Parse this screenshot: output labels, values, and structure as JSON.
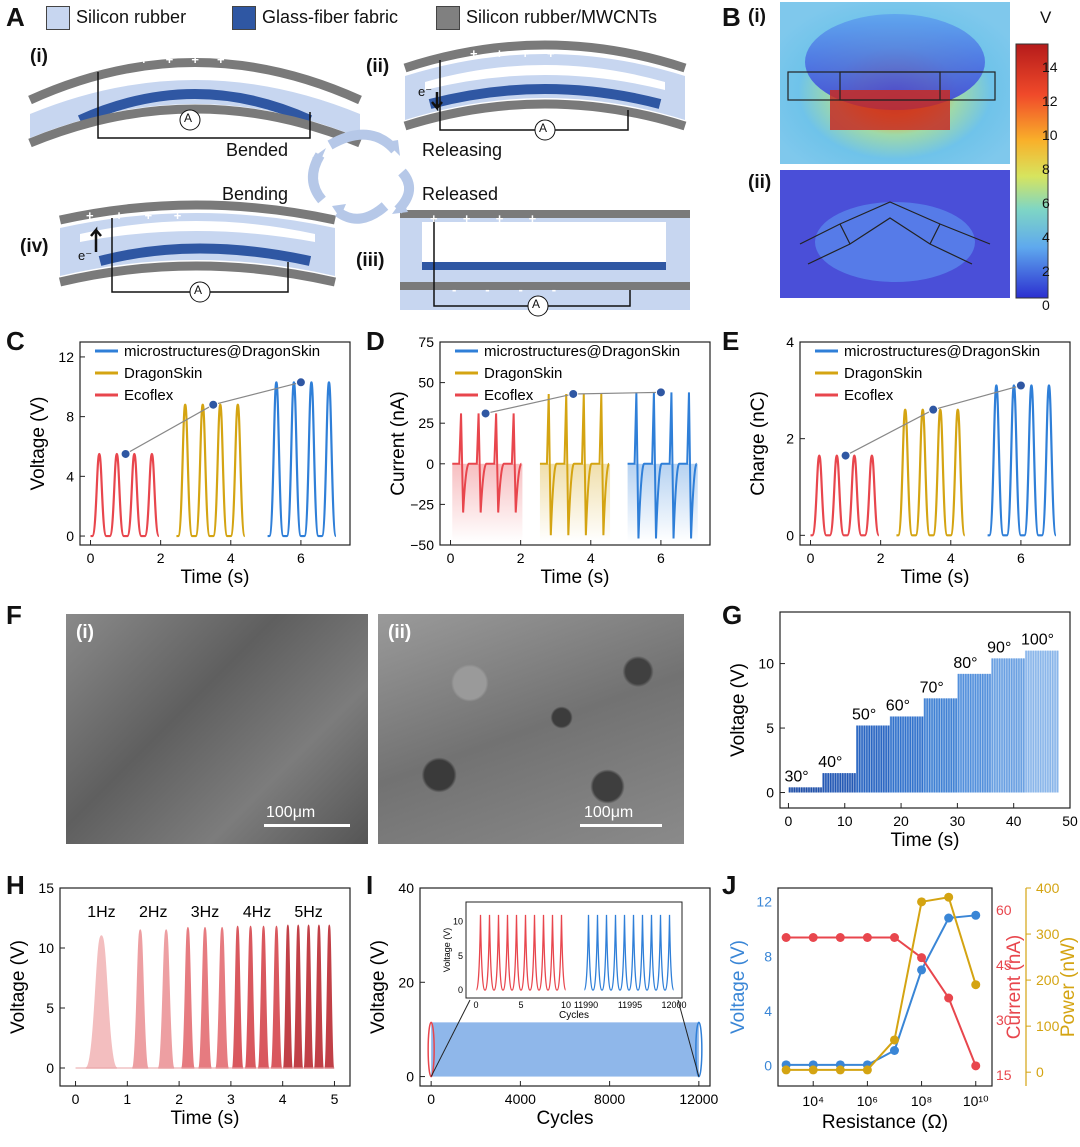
{
  "panels": {
    "A": {
      "label": "A",
      "legend": [
        {
          "label": "Silicon rubber",
          "color": "#c7d6f0"
        },
        {
          "label": "Glass-fiber fabric",
          "color": "#2f57a3"
        },
        {
          "label": "Silicon rubber/MWCNTs",
          "color": "#808080"
        }
      ],
      "subs": {
        "i": "(i)",
        "ii": "(ii)",
        "iii": "(iii)",
        "iv": "(iv)"
      },
      "states": {
        "bended": "Bended",
        "releasing": "Releasing",
        "released": "Released",
        "bending": "Bending"
      },
      "ammeter": "A",
      "electron": "e⁻",
      "plus": "+",
      "minus": "-"
    },
    "B": {
      "label": "B",
      "sub_i": "(i)",
      "sub_ii": "(ii)",
      "unit": "V",
      "colorbar_ticks": [
        "14",
        "12",
        "10",
        "8",
        "6",
        "4",
        "2",
        "0"
      ]
    },
    "F": {
      "label": "F",
      "sub_i": "(i)",
      "sub_ii": "(ii)",
      "scalebar_i": "100μm",
      "scalebar_ii": "100μm"
    },
    "C": {
      "label": "C"
    },
    "D": {
      "label": "D"
    },
    "E": {
      "label": "E"
    },
    "G": {
      "label": "G"
    },
    "H": {
      "label": "H"
    },
    "I": {
      "label": "I"
    },
    "J": {
      "label": "J"
    }
  },
  "colors": {
    "red": "#e8464d",
    "gold": "#d4a412",
    "blue": "#2f7fd8",
    "lightblue": "#8fb7ea",
    "jcur": "#e8464d",
    "jpow": "#d4a412",
    "jvol": "#3a86d6"
  },
  "chart_data": [
    {
      "id": "C",
      "type": "line",
      "xlabel": "Time (s)",
      "ylabel": "Voltage (V)",
      "xlim": [
        -0.3,
        7.4
      ],
      "ylim": [
        -0.6,
        13
      ],
      "xticks": [
        "0",
        "2",
        "4",
        "6"
      ],
      "yticks": [
        "0",
        "4",
        "8",
        "12"
      ],
      "legend": [
        "microstructures@DragonSkin",
        "DragonSkin",
        "Ecoflex"
      ],
      "series": [
        {
          "name": "Ecoflex",
          "peaks": [
            0.25,
            0.75,
            1.25,
            1.75
          ],
          "peak_value": 5.5,
          "baseline": 0.0
        },
        {
          "name": "DragonSkin",
          "peaks": [
            2.7,
            3.2,
            3.7,
            4.2
          ],
          "peak_value": 8.8,
          "baseline": 0.0
        },
        {
          "name": "microstructures@DragonSkin",
          "peaks": [
            5.3,
            5.8,
            6.3,
            6.8
          ],
          "peak_value": 10.3,
          "baseline": 0.0
        }
      ],
      "trend": [
        [
          1.0,
          5.5
        ],
        [
          3.5,
          8.8
        ],
        [
          6.0,
          10.3
        ]
      ]
    },
    {
      "id": "D",
      "type": "line",
      "xlabel": "Time (s)",
      "ylabel": "Current (nA)",
      "xlim": [
        -0.3,
        7.4
      ],
      "ylim": [
        -50,
        75
      ],
      "xticks": [
        "0",
        "2",
        "4",
        "6"
      ],
      "yticks": [
        "−50",
        "−25",
        "0",
        "25",
        "50",
        "75"
      ],
      "legend": [
        "microstructures@DragonSkin",
        "DragonSkin",
        "Ecoflex"
      ],
      "series": [
        {
          "name": "Ecoflex",
          "peaks": [
            0.3,
            0.8,
            1.3,
            1.8
          ],
          "peak_value": 31,
          "trough_value": -30
        },
        {
          "name": "DragonSkin",
          "peaks": [
            2.8,
            3.3,
            3.8,
            4.3
          ],
          "peak_value": 43,
          "trough_value": -44
        },
        {
          "name": "microstructures@DragonSkin",
          "peaks": [
            5.3,
            5.8,
            6.3,
            6.8
          ],
          "peak_value": 44,
          "trough_value": -46
        }
      ],
      "trend": [
        [
          1.0,
          31
        ],
        [
          3.5,
          43
        ],
        [
          6.0,
          44
        ]
      ]
    },
    {
      "id": "E",
      "type": "line",
      "xlabel": "Time (s)",
      "ylabel": "Charge (nC)",
      "xlim": [
        -0.3,
        7.4
      ],
      "ylim": [
        -0.2,
        4
      ],
      "xticks": [
        "0",
        "2",
        "4",
        "6"
      ],
      "yticks": [
        "0",
        "2",
        "4"
      ],
      "legend": [
        "microstructures@DragonSkin",
        "DragonSkin",
        "Ecoflex"
      ],
      "series": [
        {
          "name": "Ecoflex",
          "peaks": [
            0.25,
            0.75,
            1.25,
            1.75
          ],
          "peak_value": 1.65,
          "baseline": 0.0
        },
        {
          "name": "DragonSkin",
          "peaks": [
            2.7,
            3.2,
            3.7,
            4.2
          ],
          "peak_value": 2.6,
          "baseline": 0.0
        },
        {
          "name": "microstructures@DragonSkin",
          "peaks": [
            5.3,
            5.8,
            6.3,
            6.8
          ],
          "peak_value": 3.1,
          "baseline": 0.0
        }
      ],
      "trend": [
        [
          1.0,
          1.65
        ],
        [
          3.5,
          2.6
        ],
        [
          6.0,
          3.1
        ]
      ]
    },
    {
      "id": "G",
      "type": "line",
      "xlabel": "Time (s)",
      "ylabel": "Voltage (V)",
      "xlim": [
        -1.5,
        50
      ],
      "ylim": [
        -1.2,
        14
      ],
      "xticks": [
        "0",
        "10",
        "20",
        "30",
        "40",
        "50"
      ],
      "yticks": [
        "0",
        "5",
        "10"
      ],
      "segments": [
        {
          "label": "30°",
          "start": 0,
          "end": 6,
          "peak": 0.4
        },
        {
          "label": "40°",
          "start": 6,
          "end": 12,
          "peak": 1.5
        },
        {
          "label": "50°",
          "start": 12,
          "end": 18,
          "peak": 5.2
        },
        {
          "label": "60°",
          "start": 18,
          "end": 24,
          "peak": 5.9
        },
        {
          "label": "70°",
          "start": 24,
          "end": 30,
          "peak": 7.3
        },
        {
          "label": "80°",
          "start": 30,
          "end": 36,
          "peak": 9.2
        },
        {
          "label": "90°",
          "start": 36,
          "end": 42,
          "peak": 10.4
        },
        {
          "label": "100°",
          "start": 42,
          "end": 48,
          "peak": 11.0
        }
      ]
    },
    {
      "id": "H",
      "type": "line",
      "xlabel": "Time (s)",
      "ylabel": "Voltage (V)",
      "xlim": [
        -0.3,
        5.3
      ],
      "ylim": [
        -1.5,
        15
      ],
      "xticks": [
        "0",
        "1",
        "2",
        "3",
        "4",
        "5"
      ],
      "yticks": [
        "0",
        "5",
        "10",
        "15"
      ],
      "groups": [
        {
          "label": "1Hz",
          "peaks": [
            0.5
          ],
          "peak_value": 11.0
        },
        {
          "label": "2Hz",
          "peaks": [
            1.25,
            1.75
          ],
          "peak_value": 11.5
        },
        {
          "label": "3Hz",
          "peaks": [
            2.17,
            2.5,
            2.83
          ],
          "peak_value": 11.7
        },
        {
          "label": "4Hz",
          "peaks": [
            3.13,
            3.38,
            3.63,
            3.88
          ],
          "peak_value": 11.8
        },
        {
          "label": "5Hz",
          "peaks": [
            4.1,
            4.3,
            4.5,
            4.7,
            4.9
          ],
          "peak_value": 11.9
        }
      ]
    },
    {
      "id": "I",
      "type": "area",
      "xlabel": "Cycles",
      "ylabel": "Voltage (V)",
      "xlim": [
        -500,
        12500
      ],
      "ylim": [
        -2,
        40
      ],
      "xticks": [
        "0",
        "4000",
        "8000",
        "12000"
      ],
      "yticks": [
        "0",
        "20",
        "40"
      ],
      "band": {
        "from": 0,
        "to": 12000,
        "max": 11.5
      },
      "inset": {
        "xlabel": "Cycles",
        "ylabel": "Voltage (V)",
        "xticks_left": [
          "0",
          "5",
          "10"
        ],
        "xticks_right": [
          "11990",
          "11995",
          "12000"
        ],
        "yticks": [
          "0",
          "5",
          "10"
        ],
        "cycles_each": 10,
        "peak_value": 11.0
      }
    },
    {
      "id": "J",
      "type": "line",
      "xlabel": "Resistance (Ω)",
      "ylabel_left": "Voltage (V)",
      "ylabel_mid": "Current (nA)",
      "ylabel_right": "Power (nW)",
      "x_log10": [
        3,
        4,
        5,
        6,
        7,
        8,
        9,
        10
      ],
      "xticks": [
        "10⁴",
        "10⁶",
        "10⁸",
        "10¹⁰"
      ],
      "y_left_lim": [
        -1.5,
        13
      ],
      "y_left_ticks": [
        "0",
        "4",
        "8",
        "12"
      ],
      "y_mid_lim": [
        12,
        66
      ],
      "y_mid_ticks": [
        "15",
        "30",
        "45",
        "60"
      ],
      "y_right_lim": [
        -30,
        400
      ],
      "y_right_ticks": [
        "0",
        "100",
        "200",
        "300",
        "400"
      ],
      "series": [
        {
          "name": "Voltage",
          "axis": "left",
          "values": [
            0.05,
            0.05,
            0.05,
            0.05,
            1.1,
            7.0,
            10.8,
            11.0
          ]
        },
        {
          "name": "Current",
          "axis": "mid",
          "values": [
            52.5,
            52.5,
            52.5,
            52.5,
            52.5,
            47.0,
            36.0,
            17.5
          ]
        },
        {
          "name": "Power",
          "axis": "right",
          "values": [
            5,
            5,
            5,
            5,
            70,
            370,
            380,
            190
          ]
        }
      ]
    }
  ]
}
